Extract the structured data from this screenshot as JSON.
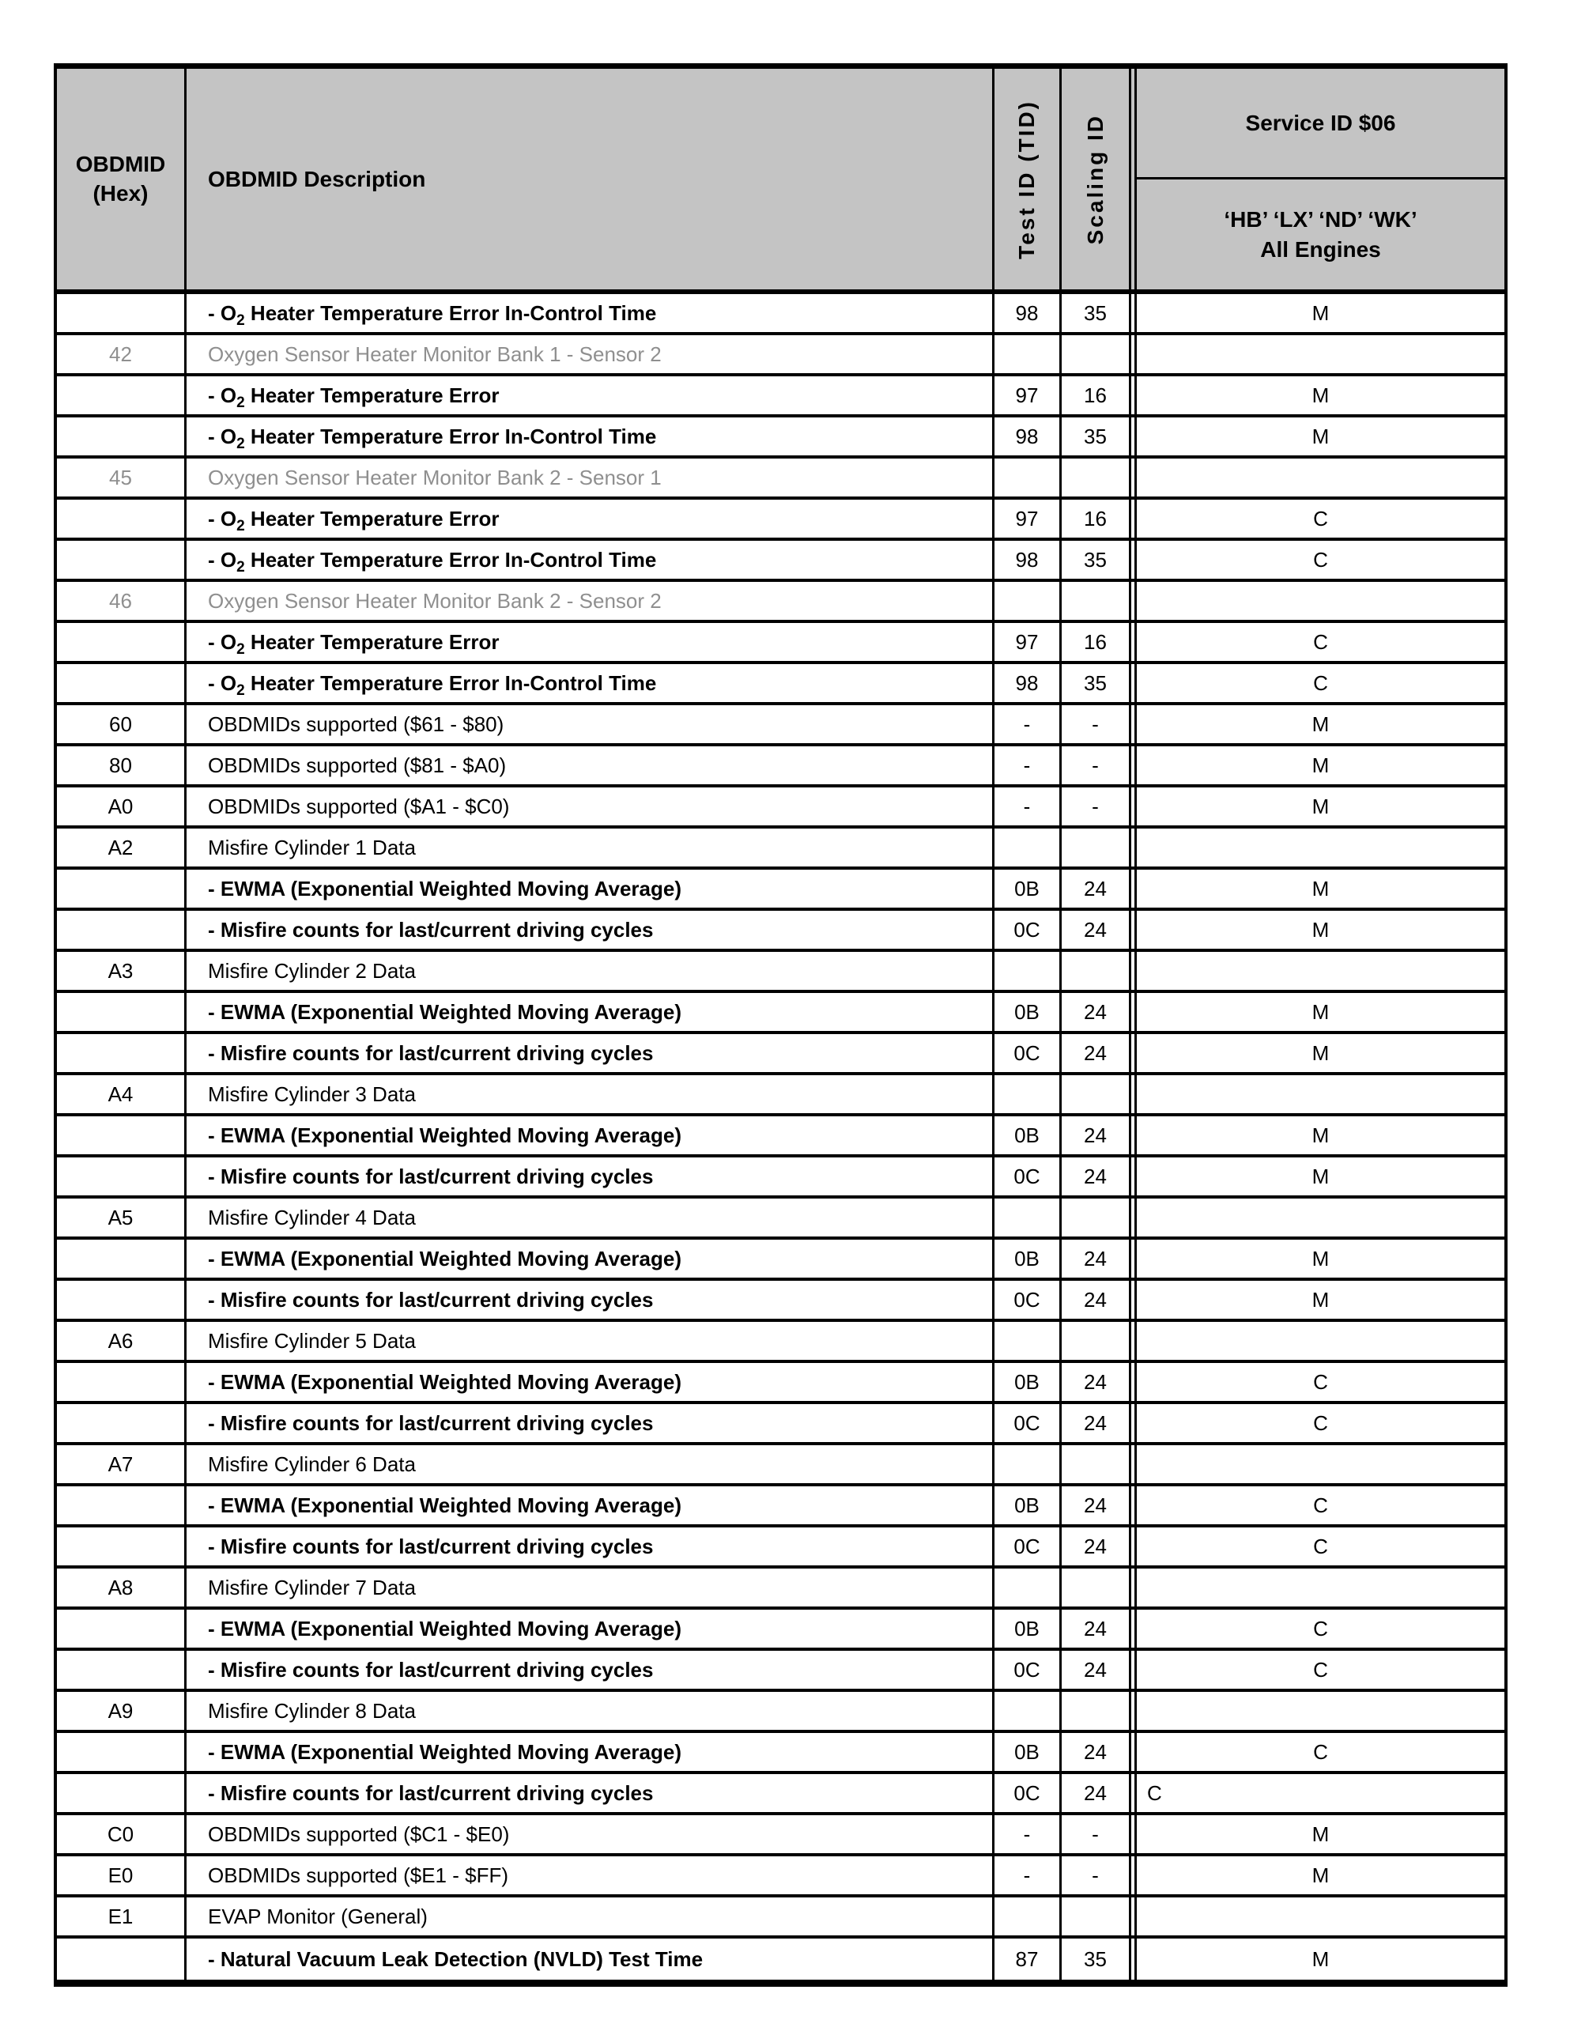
{
  "table": {
    "colors": {
      "header_bg": "#c4c4c4",
      "grid_line": "#000000",
      "dimmed_text": "#8f8f8f"
    },
    "header": {
      "hex_line1": "OBDMID",
      "hex_line2": "(Hex)",
      "description": "OBDMID Description",
      "test_id": "Test ID (TID)",
      "scaling_id": "Scaling ID",
      "service_title": "Service ID $06",
      "engines_line1": "‘HB’ ‘LX’ ‘ND’ ‘WK’",
      "engines_line2": "All Engines"
    },
    "rows": [
      {
        "hex": "",
        "desc": "- O{2} Heater Temperature Error In-Control Time",
        "tid": "98",
        "scaling": "35",
        "service": "M",
        "type": "sub"
      },
      {
        "hex": "42",
        "desc": "Oxygen Sensor Heater Monitor Bank 1 - Sensor 2",
        "tid": "",
        "scaling": "",
        "service": "",
        "type": "gray"
      },
      {
        "hex": "",
        "desc": "- O{2} Heater Temperature Error",
        "tid": "97",
        "scaling": "16",
        "service": "M",
        "type": "sub"
      },
      {
        "hex": "",
        "desc": "- O{2} Heater Temperature Error In-Control Time",
        "tid": "98",
        "scaling": "35",
        "service": "M",
        "type": "sub"
      },
      {
        "hex": "45",
        "desc": "Oxygen Sensor Heater Monitor Bank 2 - Sensor 1",
        "tid": "",
        "scaling": "",
        "service": "",
        "type": "gray"
      },
      {
        "hex": "",
        "desc": "- O{2} Heater Temperature Error",
        "tid": "97",
        "scaling": "16",
        "service": "C",
        "type": "sub"
      },
      {
        "hex": "",
        "desc": "- O{2} Heater Temperature Error In-Control Time",
        "tid": "98",
        "scaling": "35",
        "service": "C",
        "type": "sub"
      },
      {
        "hex": "46",
        "desc": "Oxygen Sensor Heater Monitor Bank 2 - Sensor 2",
        "tid": "",
        "scaling": "",
        "service": "",
        "type": "gray"
      },
      {
        "hex": "",
        "desc": "- O{2} Heater Temperature Error",
        "tid": "97",
        "scaling": "16",
        "service": "C",
        "type": "sub"
      },
      {
        "hex": "",
        "desc": "- O{2} Heater Temperature Error In-Control Time",
        "tid": "98",
        "scaling": "35",
        "service": "C",
        "type": "sub"
      },
      {
        "hex": "60",
        "desc": "OBDMIDs supported ($61 - $80)",
        "tid": "-",
        "scaling": "-",
        "service": "M",
        "type": "plain"
      },
      {
        "hex": "80",
        "desc": "OBDMIDs supported ($81 - $A0)",
        "tid": "-",
        "scaling": "-",
        "service": "M",
        "type": "plain"
      },
      {
        "hex": "A0",
        "desc": "OBDMIDs supported ($A1 - $C0)",
        "tid": "-",
        "scaling": "-",
        "service": "M",
        "type": "plain"
      },
      {
        "hex": "A2",
        "desc": "Misfire Cylinder 1 Data",
        "tid": "",
        "scaling": "",
        "service": "",
        "type": "plain"
      },
      {
        "hex": "",
        "desc": "- EWMA (Exponential Weighted Moving Average)",
        "tid": "0B",
        "scaling": "24",
        "service": "M",
        "type": "sub"
      },
      {
        "hex": "",
        "desc": "- Misfire counts for last/current driving cycles",
        "tid": "0C",
        "scaling": "24",
        "service": "M",
        "type": "sub"
      },
      {
        "hex": "A3",
        "desc": "Misfire Cylinder 2 Data",
        "tid": "",
        "scaling": "",
        "service": "",
        "type": "plain"
      },
      {
        "hex": "",
        "desc": "- EWMA (Exponential Weighted Moving Average)",
        "tid": "0B",
        "scaling": "24",
        "service": "M",
        "type": "sub"
      },
      {
        "hex": "",
        "desc": "- Misfire counts for last/current driving cycles",
        "tid": "0C",
        "scaling": "24",
        "service": "M",
        "type": "sub"
      },
      {
        "hex": "A4",
        "desc": "Misfire Cylinder 3 Data",
        "tid": "",
        "scaling": "",
        "service": "",
        "type": "plain"
      },
      {
        "hex": "",
        "desc": "- EWMA (Exponential Weighted Moving Average)",
        "tid": "0B",
        "scaling": "24",
        "service": "M",
        "type": "sub"
      },
      {
        "hex": "",
        "desc": "- Misfire counts for last/current driving cycles",
        "tid": "0C",
        "scaling": "24",
        "service": "M",
        "type": "sub"
      },
      {
        "hex": "A5",
        "desc": "Misfire Cylinder 4 Data",
        "tid": "",
        "scaling": "",
        "service": "",
        "type": "plain"
      },
      {
        "hex": "",
        "desc": "- EWMA (Exponential Weighted Moving Average)",
        "tid": "0B",
        "scaling": "24",
        "service": "M",
        "type": "sub"
      },
      {
        "hex": "",
        "desc": "- Misfire counts for last/current driving cycles",
        "tid": "0C",
        "scaling": "24",
        "service": "M",
        "type": "sub"
      },
      {
        "hex": "A6",
        "desc": "Misfire Cylinder 5 Data",
        "tid": "",
        "scaling": "",
        "service": "",
        "type": "plain"
      },
      {
        "hex": "",
        "desc": "- EWMA (Exponential Weighted Moving Average)",
        "tid": "0B",
        "scaling": "24",
        "service": "C",
        "type": "sub"
      },
      {
        "hex": "",
        "desc": "- Misfire counts for last/current driving cycles",
        "tid": "0C",
        "scaling": "24",
        "service": "C",
        "type": "sub"
      },
      {
        "hex": "A7",
        "desc": "Misfire Cylinder 6 Data",
        "tid": "",
        "scaling": "",
        "service": "",
        "type": "plain"
      },
      {
        "hex": "",
        "desc": "- EWMA (Exponential Weighted Moving Average)",
        "tid": "0B",
        "scaling": "24",
        "service": "C",
        "type": "sub"
      },
      {
        "hex": "",
        "desc": "- Misfire counts for last/current driving cycles",
        "tid": "0C",
        "scaling": "24",
        "service": "C",
        "type": "sub"
      },
      {
        "hex": "A8",
        "desc": "Misfire Cylinder 7 Data",
        "tid": "",
        "scaling": "",
        "service": "",
        "type": "plain"
      },
      {
        "hex": "",
        "desc": "- EWMA (Exponential Weighted Moving Average)",
        "tid": "0B",
        "scaling": "24",
        "service": "C",
        "type": "sub"
      },
      {
        "hex": "",
        "desc": "- Misfire counts for last/current driving cycles",
        "tid": "0C",
        "scaling": "24",
        "service": "C",
        "type": "sub"
      },
      {
        "hex": "A9",
        "desc": "Misfire Cylinder 8 Data",
        "tid": "",
        "scaling": "",
        "service": "",
        "type": "plain"
      },
      {
        "hex": "",
        "desc": "- EWMA (Exponential Weighted Moving Average)",
        "tid": "0B",
        "scaling": "24",
        "service": "C",
        "type": "sub"
      },
      {
        "hex": "",
        "desc": "- Misfire counts for last/current driving cycles",
        "tid": "0C",
        "scaling": "24",
        "service": "C",
        "type": "sub",
        "service_align": "left"
      },
      {
        "hex": "C0",
        "desc": "OBDMIDs supported ($C1 - $E0)",
        "tid": "-",
        "scaling": "-",
        "service": "M",
        "type": "plain"
      },
      {
        "hex": "E0",
        "desc": "OBDMIDs supported ($E1 - $FF)",
        "tid": "-",
        "scaling": "-",
        "service": "M",
        "type": "plain"
      },
      {
        "hex": "E1",
        "desc": "EVAP Monitor (General)",
        "tid": "",
        "scaling": "",
        "service": "",
        "type": "plain"
      },
      {
        "hex": "",
        "desc": "- Natural Vacuum Leak Detection (NVLD) Test Time",
        "tid": "87",
        "scaling": "35",
        "service": "M",
        "type": "sub"
      }
    ]
  }
}
